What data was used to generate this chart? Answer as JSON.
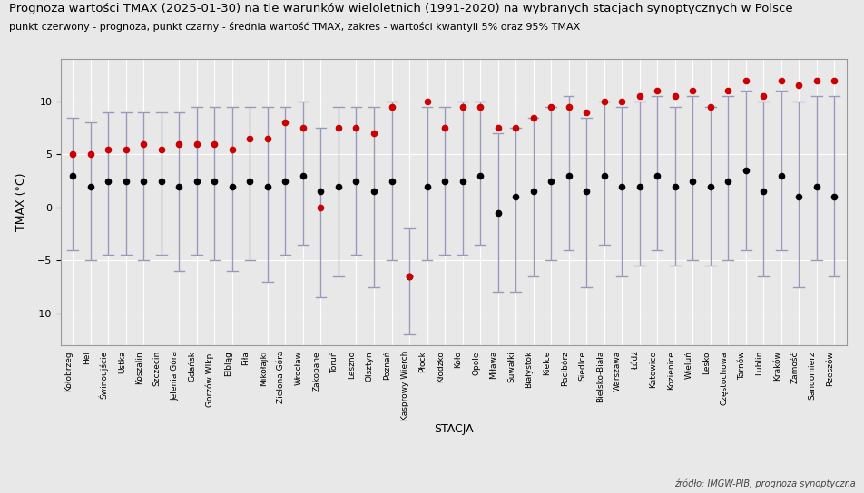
{
  "title": "Prognoza wartości TMAX (2025-01-30) na tle warunków wieloletnich (1991-2020) na wybranych stacjach synoptycznych w Polsce",
  "subtitle": "punkt czerwony - prognoza, punkt czarny - średnia wartość TMAX, zakres - wartości kwantyli 5% oraz 95% TMAX",
  "xlabel": "STACJA",
  "ylabel": "TMAX (°C)",
  "source": "źródło: IMGW-PIB, prognoza synoptyczna",
  "stations": [
    "Kołobrzeg",
    "Hel",
    "Świnoujście",
    "Ustka",
    "Koszalin",
    "Szczecin",
    "Jelenia Góra",
    "Gdańsk",
    "Gorzów Wlkp.",
    "Elbląg",
    "Piła",
    "Mikołajki",
    "Zielona Góra",
    "Wrocław",
    "Zakopane",
    "Toruń",
    "Leszno",
    "Olsztyn",
    "Poznań",
    "Kasprowy Wierch",
    "Płock",
    "Kłodzko",
    "Koło",
    "Opole",
    "Miława",
    "Suwałki",
    "Białystok",
    "Kielce",
    "Racibórz",
    "Siedlce",
    "Bielsko-Biała",
    "Warszawa",
    "Łódź",
    "Katowice",
    "Kozienice",
    "Wieluń",
    "Lesko",
    "Częstochowa",
    "Tarnów",
    "Lublin",
    "Kraków",
    "Zamość",
    "Sandomierz",
    "Rzeszów"
  ],
  "forecast": [
    5.0,
    5.0,
    5.5,
    5.5,
    6.0,
    5.5,
    6.0,
    6.0,
    6.0,
    5.5,
    6.5,
    6.5,
    8.0,
    7.5,
    0.0,
    7.5,
    7.5,
    7.0,
    9.5,
    -6.5,
    10.0,
    7.5,
    9.5,
    9.5,
    7.5,
    7.5,
    8.5,
    9.5,
    9.5,
    9.0,
    10.0,
    10.0,
    10.5,
    11.0,
    10.5,
    11.0,
    9.5,
    11.0,
    12.0,
    10.5,
    12.0,
    11.5,
    12.0,
    12.0
  ],
  "mean": [
    3.0,
    2.0,
    2.5,
    2.5,
    2.5,
    2.5,
    2.0,
    2.5,
    2.5,
    2.0,
    2.5,
    2.0,
    2.5,
    3.0,
    1.5,
    2.0,
    2.5,
    1.5,
    2.5,
    -6.5,
    2.0,
    2.5,
    2.5,
    3.0,
    -0.5,
    1.0,
    1.5,
    2.5,
    3.0,
    1.5,
    3.0,
    2.0,
    2.0,
    3.0,
    2.0,
    2.5,
    2.0,
    2.5,
    3.5,
    1.5,
    3.0,
    1.0,
    2.0,
    1.0
  ],
  "q05": [
    -4.0,
    -5.0,
    -4.5,
    -4.5,
    -5.0,
    -4.5,
    -6.0,
    -4.5,
    -5.0,
    -6.0,
    -5.0,
    -7.0,
    -4.5,
    -3.5,
    -8.5,
    -6.5,
    -4.5,
    -7.5,
    -5.0,
    -12.0,
    -5.0,
    -4.5,
    -4.5,
    -3.5,
    -8.0,
    -8.0,
    -6.5,
    -5.0,
    -4.0,
    -7.5,
    -3.5,
    -6.5,
    -5.5,
    -4.0,
    -5.5,
    -5.0,
    -5.5,
    -5.0,
    -4.0,
    -6.5,
    -4.0,
    -7.5,
    -5.0,
    -6.5
  ],
  "q95": [
    8.5,
    8.0,
    9.0,
    9.0,
    9.0,
    9.0,
    9.0,
    9.5,
    9.5,
    9.5,
    9.5,
    9.5,
    9.5,
    10.0,
    7.5,
    9.5,
    9.5,
    9.5,
    10.0,
    -2.0,
    9.5,
    9.5,
    10.0,
    10.0,
    7.0,
    7.5,
    8.5,
    9.5,
    10.5,
    8.5,
    10.0,
    9.5,
    10.0,
    10.5,
    9.5,
    10.5,
    9.5,
    10.5,
    11.0,
    10.0,
    11.0,
    10.0,
    10.5,
    10.5
  ],
  "bg_color": "#e8e8e8",
  "plot_bg_color": "#e8e8e8",
  "grid_color": "#ffffff",
  "errorbar_color": "#9999bb",
  "forecast_color": "#cc0000",
  "mean_color": "#000000",
  "title_fontsize": 9.5,
  "subtitle_fontsize": 8,
  "ylim": [
    -13,
    14
  ],
  "yticks": [
    -10,
    -5,
    0,
    5,
    10
  ]
}
